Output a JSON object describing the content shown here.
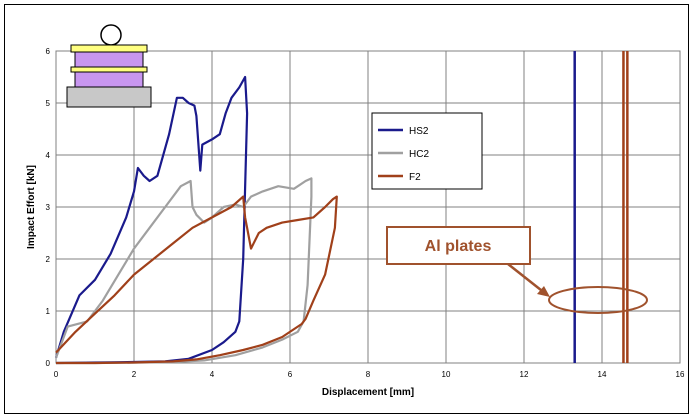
{
  "chart_data": {
    "type": "line",
    "title": "",
    "xlabel": "Displacement [mm]",
    "ylabel": "Impact Effort [kN]",
    "xlim": [
      0,
      16
    ],
    "ylim": [
      0,
      6
    ],
    "xticks": [
      "0",
      "2",
      "4",
      "6",
      "8",
      "10",
      "12",
      "14",
      "16"
    ],
    "yticks": [
      "0",
      "1",
      "2",
      "3",
      "4",
      "5",
      "6"
    ],
    "grid": true,
    "legend": "center",
    "colors": {
      "HS2": "#1a1a8c",
      "HC2": "#a0a0a0",
      "F2": "#a0401a",
      "annotation": "#a0522d"
    },
    "series": [
      {
        "name": "HS2",
        "x": [
          0,
          0.2,
          0.6,
          1.0,
          1.4,
          1.8,
          2.0,
          2.1,
          2.25,
          2.4,
          2.6,
          2.9,
          3.1,
          3.25,
          3.4,
          3.55,
          3.6,
          3.7,
          3.75,
          4.0,
          4.2,
          4.35,
          4.5,
          4.7,
          4.85,
          4.9,
          4.8,
          4.7,
          4.6,
          4.3,
          4.0,
          3.4,
          2.8,
          2.0,
          1.0,
          0
        ],
        "y": [
          0.1,
          0.6,
          1.3,
          1.6,
          2.1,
          2.8,
          3.3,
          3.75,
          3.6,
          3.5,
          3.6,
          4.4,
          5.1,
          5.1,
          5.0,
          4.95,
          4.75,
          3.7,
          4.2,
          4.3,
          4.4,
          4.8,
          5.1,
          5.3,
          5.5,
          4.8,
          2.0,
          0.8,
          0.6,
          0.4,
          0.25,
          0.08,
          0.03,
          0.02,
          0.01,
          0.0
        ]
      },
      {
        "name": "HC2",
        "x": [
          0,
          0.3,
          0.8,
          1.2,
          1.6,
          2.0,
          2.4,
          2.8,
          3.2,
          3.45,
          3.5,
          3.6,
          3.8,
          4.0,
          4.3,
          4.6,
          4.8,
          5.0,
          5.3,
          5.7,
          6.1,
          6.4,
          6.55,
          6.55,
          6.45,
          6.35,
          6.2,
          5.8,
          5.3,
          4.6,
          3.8,
          3.0,
          2.2,
          1.0,
          0
        ],
        "y": [
          0.1,
          0.7,
          0.8,
          1.2,
          1.7,
          2.2,
          2.6,
          3.0,
          3.4,
          3.5,
          3.0,
          2.85,
          2.7,
          2.8,
          3.0,
          3.05,
          3.0,
          3.2,
          3.3,
          3.4,
          3.35,
          3.5,
          3.55,
          3.2,
          1.5,
          0.8,
          0.6,
          0.45,
          0.3,
          0.15,
          0.05,
          0.02,
          0.01,
          0.0,
          0.0
        ]
      },
      {
        "name": "F2",
        "x": [
          0,
          0.5,
          1.0,
          1.5,
          2.0,
          2.5,
          3.0,
          3.5,
          4.0,
          4.5,
          4.8,
          4.85,
          4.9,
          5.0,
          5.2,
          5.4,
          5.8,
          6.2,
          6.6,
          6.9,
          7.1,
          7.2,
          7.15,
          6.9,
          6.6,
          6.4,
          6.3,
          5.8,
          5.3,
          4.8,
          4.2,
          3.6,
          3.0,
          2.0,
          1.0,
          0
        ],
        "y": [
          0.2,
          0.6,
          0.95,
          1.3,
          1.7,
          2.0,
          2.3,
          2.6,
          2.8,
          3.0,
          3.2,
          2.8,
          2.6,
          2.2,
          2.5,
          2.6,
          2.7,
          2.75,
          2.8,
          3.0,
          3.15,
          3.2,
          2.6,
          1.7,
          1.2,
          0.85,
          0.75,
          0.5,
          0.35,
          0.25,
          0.15,
          0.07,
          0.03,
          0.01,
          0.0,
          0.0
        ]
      }
    ],
    "vertical_lines": [
      {
        "x": 13.3,
        "color": "#1a1a8c"
      },
      {
        "x": 14.55,
        "color": "#a0401a"
      },
      {
        "x": 14.65,
        "color": "#a0401a"
      }
    ],
    "annotation": {
      "text": "Al plates",
      "target_x": 14.0,
      "target_y": 1.45
    }
  }
}
